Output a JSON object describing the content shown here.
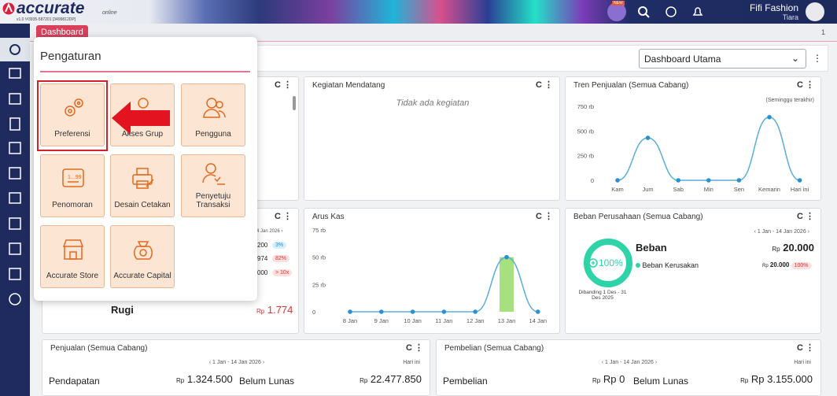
{
  "header": {
    "logo": "accurate",
    "edition": "online",
    "version": "v1.0 !#3935-587201 [3499812DP]",
    "new_badge": "NEW",
    "company": "Fifi Fashion",
    "user": "Tiara"
  },
  "tabs": {
    "active": "Dashboard",
    "count": "1"
  },
  "toolbar": {
    "dashboard_select": "Dashboard Utama"
  },
  "settings_menu": {
    "title": "Pengaturan",
    "items": [
      "Preferensi",
      "Akses Grup",
      "Pengguna",
      "Penomoran",
      "Desain Cetakan",
      "Penyetuju Transaksi",
      "Accurate Store",
      "Accurate Capital"
    ]
  },
  "widgets": {
    "kegiatan": {
      "title": "Kegiatan Mendatang",
      "empty": "Tidak ada kegiatan"
    },
    "tren": {
      "title": "Tren Penjualan (Semua Cabang)",
      "note": "(Seminggu terakhir)",
      "chart": {
        "type": "line",
        "categories": [
          "Kam",
          "Jum",
          "Sab",
          "Min",
          "Sen",
          "Kemarin",
          "Hari ini"
        ],
        "values": [
          0,
          430,
          0,
          0,
          0,
          640,
          0
        ],
        "color": "#5aaedb",
        "ylim": [
          0,
          750
        ],
        "yticks": [
          0,
          {
            "value": 250,
            "label": "250 rb"
          },
          {
            "value": 500,
            "label": "500 rb"
          },
          {
            "value": 750,
            "label": "750 rb"
          }
        ]
      }
    },
    "laba": {
      "date": "4 Jan 2026 ›",
      "rows": [
        {
          "value": "200",
          "badge": "3%"
        },
        {
          "value": "974",
          "badge": "82%"
        },
        {
          "value": "000",
          "badge": "> 10x"
        }
      ],
      "label": "Rugi",
      "currency": "Rp",
      "amount": "1.774"
    },
    "arus_kas": {
      "title": "Arus Kas",
      "chart": {
        "type": "line",
        "categories": [
          "8 Jan",
          "9 Jan",
          "10 Jan",
          "11 Jan",
          "12 Jan",
          "13 Jan",
          "14 Jan"
        ],
        "values": [
          0,
          0,
          0,
          0,
          0,
          50,
          0
        ],
        "bar_values": [
          0,
          0,
          0,
          0,
          0,
          50,
          0
        ],
        "color": "#5aaedb",
        "bar_color": "#a6e07f",
        "ylim": [
          0,
          75
        ],
        "yticks": [
          0,
          {
            "value": 25,
            "label": "25 rb"
          },
          {
            "value": 50,
            "label": "50 rb"
          },
          {
            "value": 75,
            "label": "75 rb"
          }
        ]
      }
    },
    "beban": {
      "title": "Beban Perusahaan (Semua Cabang)",
      "period": "‹ 1 Jan - 14 Jan 2026 ›",
      "percent": "100%",
      "compare": "Dibanding 1 Des - 31 Des 2025",
      "heading": "Beban",
      "currency": "Rp",
      "total": "20.000",
      "item": "Beban Kerusakan",
      "item_currency": "Rp",
      "item_amount": "20.000",
      "item_badge": "100%"
    },
    "penjualan": {
      "title": "Penjualan (Semua Cabang)",
      "period": "‹ 1 Jan - 14 Jan 2026 ›",
      "today": "Hari ini",
      "label1": "Pendapatan",
      "currency1": "Rp",
      "amount1": "1.324.500",
      "label2": "Belum Lunas",
      "currency2": "Rp",
      "amount2": "22.477.850"
    },
    "pembelian": {
      "title": "Pembelian (Semua Cabang)",
      "period": "‹ 1 Jan - 14 Jan 2026 ›",
      "today": "Hari ini",
      "label1": "Pembelian",
      "currency1": "Rp",
      "amount1": "Rp 0",
      "label2": "Belum Lunas",
      "currency2": "Rp",
      "amount2": "Rp 3.155.000"
    }
  }
}
